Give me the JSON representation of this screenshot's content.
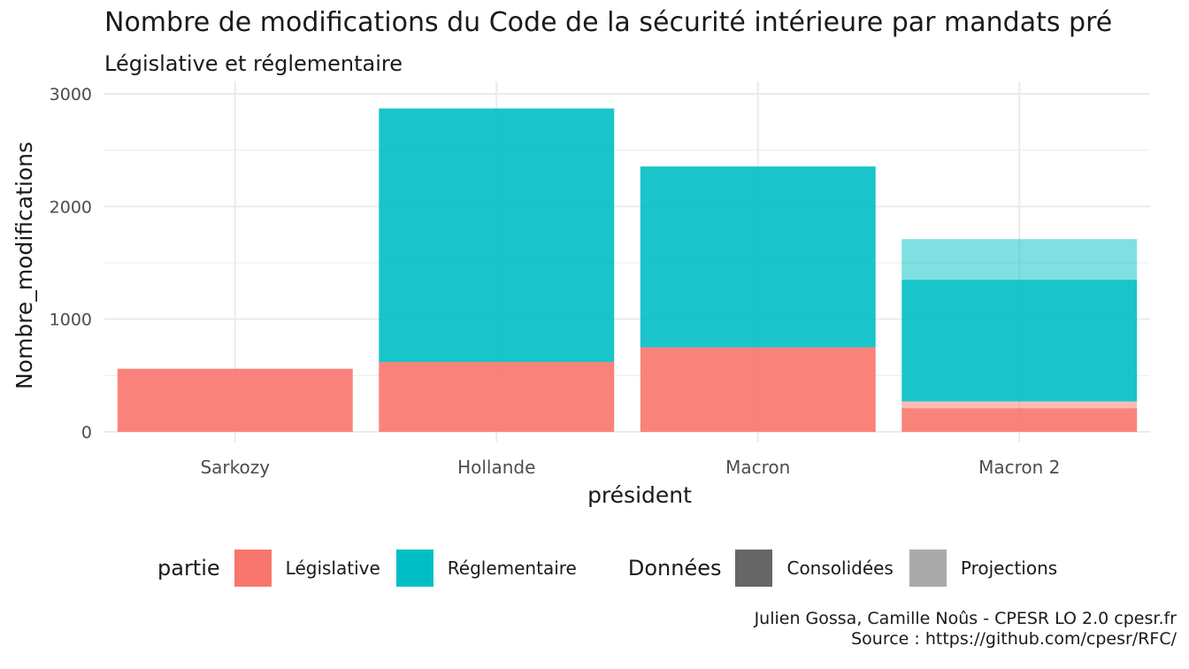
{
  "chart_data": {
    "type": "bar",
    "stacked": true,
    "title": "Nombre de modifications du Code de la sécurité intérieure par mandats pré",
    "subtitle": "Législative et réglementaire",
    "xlabel": "président",
    "ylabel": "Nombre_modifications",
    "categories": [
      "Sarkozy",
      "Hollande",
      "Macron",
      "Macron 2"
    ],
    "ylim": [
      0,
      3000
    ],
    "yticks": [
      0,
      1000,
      2000,
      3000
    ],
    "grid": true,
    "series": [
      {
        "name": "Législative",
        "donnees": "Consolidées",
        "color": "#F8766D",
        "opacity": 0.9,
        "values": [
          560,
          620,
          750,
          210
        ]
      },
      {
        "name": "Législative",
        "donnees": "Projections",
        "color": "#F8766D",
        "opacity": 0.5,
        "values": [
          0,
          0,
          0,
          60
        ]
      },
      {
        "name": "Réglementaire",
        "donnees": "Consolidées",
        "color": "#00BFC4",
        "opacity": 0.9,
        "values": [
          0,
          2250,
          1605,
          1080
        ]
      },
      {
        "name": "Réglementaire",
        "donnees": "Projections",
        "color": "#00BFC4",
        "opacity": 0.5,
        "values": [
          0,
          0,
          0,
          360
        ]
      }
    ],
    "legend": {
      "position": "bottom",
      "partie_title": "partie",
      "partie": [
        {
          "label": "Législative",
          "color": "#F8766D"
        },
        {
          "label": "Réglementaire",
          "color": "#00BFC4"
        }
      ],
      "donnees_title": "Données",
      "donnees": [
        {
          "label": "Consolidées",
          "color": "#666666"
        },
        {
          "label": "Projections",
          "color": "#AAAAAA"
        }
      ]
    }
  },
  "caption": {
    "line1": "Julien Gossa, Camille Noûs - CPESR LO 2.0 cpesr.fr",
    "line2": "Source : https://github.com/cpesr/RFC/"
  }
}
